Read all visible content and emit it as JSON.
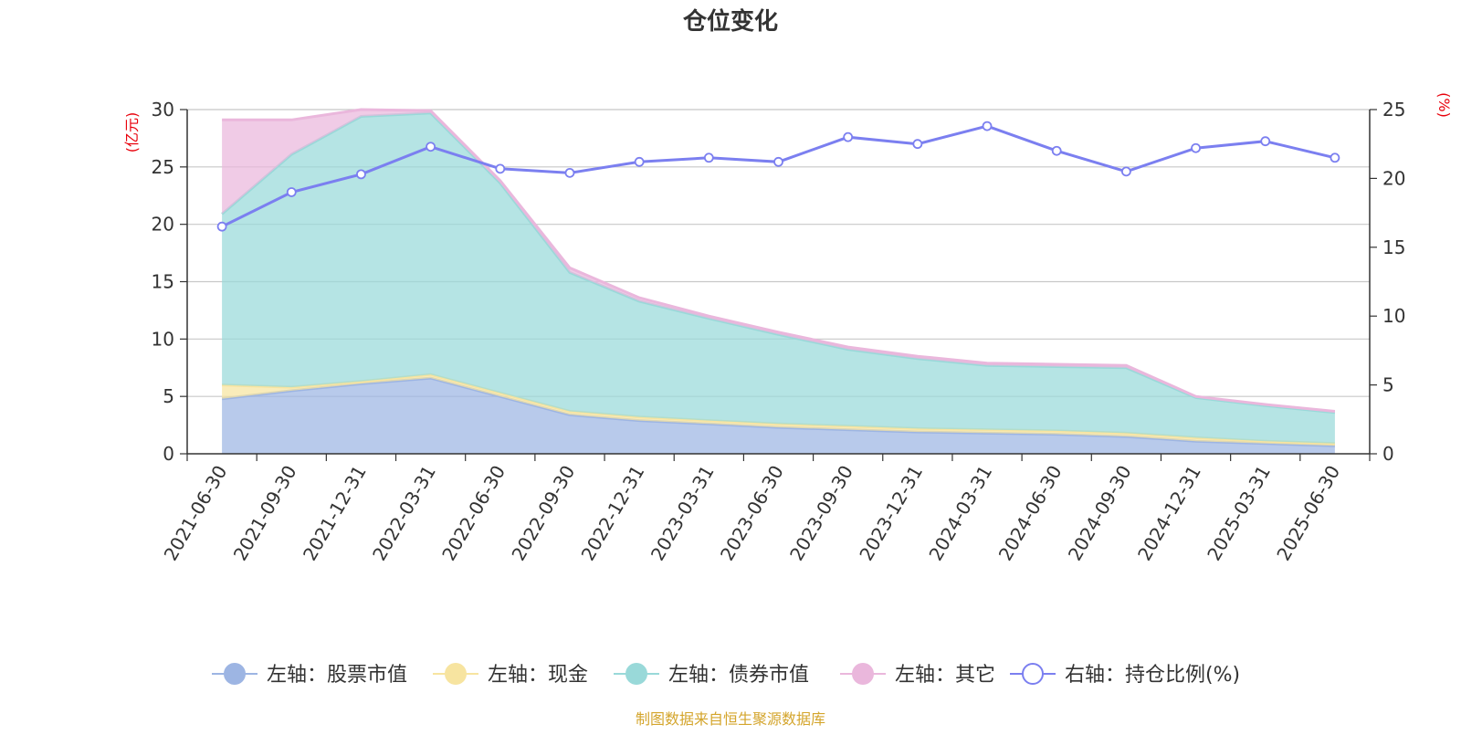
{
  "chart_data": {
    "type": "area",
    "title": "仓位变化",
    "categories": [
      "2021-06-30",
      "2021-09-30",
      "2021-12-31",
      "2022-03-31",
      "2022-06-30",
      "2022-09-30",
      "2022-12-31",
      "2023-03-31",
      "2023-06-30",
      "2023-09-30",
      "2023-12-31",
      "2024-03-31",
      "2024-06-30",
      "2024-09-30",
      "2024-12-31",
      "2025-03-31",
      "2025-06-30"
    ],
    "left_axis": {
      "unit_label": "(亿元)",
      "ylim": [
        0,
        30
      ],
      "ticks": [
        0,
        5,
        10,
        15,
        20,
        25,
        30
      ]
    },
    "right_axis": {
      "unit_label": "(%)",
      "ylim": [
        0,
        25
      ],
      "ticks": [
        0,
        5,
        10,
        15,
        20,
        25
      ]
    },
    "stacked": true,
    "grid": true,
    "legend_position": "bottom",
    "series": [
      {
        "name": "左轴：股票市值",
        "axis": "left",
        "kind": "area",
        "color": "#9db5e3",
        "values": [
          4.8,
          5.5,
          6.1,
          6.6,
          5.0,
          3.4,
          2.9,
          2.6,
          2.3,
          2.1,
          1.9,
          1.8,
          1.7,
          1.5,
          1.1,
          0.9,
          0.7
        ]
      },
      {
        "name": "左轴：现金",
        "axis": "left",
        "kind": "area",
        "color": "#f7e4a0",
        "values": [
          1.2,
          0.3,
          0.2,
          0.3,
          0.3,
          0.3,
          0.3,
          0.3,
          0.3,
          0.3,
          0.3,
          0.3,
          0.3,
          0.3,
          0.3,
          0.2,
          0.2
        ]
      },
      {
        "name": "左轴：债券市值",
        "axis": "left",
        "kind": "area",
        "color": "#99d9d9",
        "values": [
          14.9,
          20.3,
          23.1,
          22.8,
          18.3,
          12.1,
          10.1,
          8.9,
          7.8,
          6.7,
          6.1,
          5.6,
          5.6,
          5.7,
          3.5,
          3.1,
          2.7
        ]
      },
      {
        "name": "左轴：其它",
        "axis": "left",
        "kind": "area",
        "color": "#eab7dc",
        "values": [
          8.2,
          3.0,
          0.6,
          0.2,
          0.2,
          0.4,
          0.3,
          0.2,
          0.2,
          0.2,
          0.2,
          0.2,
          0.2,
          0.2,
          0.1,
          0.1,
          0.1
        ]
      },
      {
        "name": "右轴：持仓比例(%)",
        "axis": "right",
        "kind": "line",
        "color": "#7b7ff0",
        "values": [
          16.5,
          19.0,
          20.3,
          22.3,
          20.7,
          20.4,
          21.2,
          21.5,
          21.2,
          23.0,
          22.5,
          23.8,
          22.0,
          20.5,
          22.2,
          22.7,
          21.5
        ]
      }
    ]
  },
  "source_text": "制图数据来自恒生聚源数据库",
  "colors": {
    "axis_unit": "#e8000b",
    "source": "#d4a52c",
    "grid": "#c8c8c8",
    "axis": "#333333"
  }
}
